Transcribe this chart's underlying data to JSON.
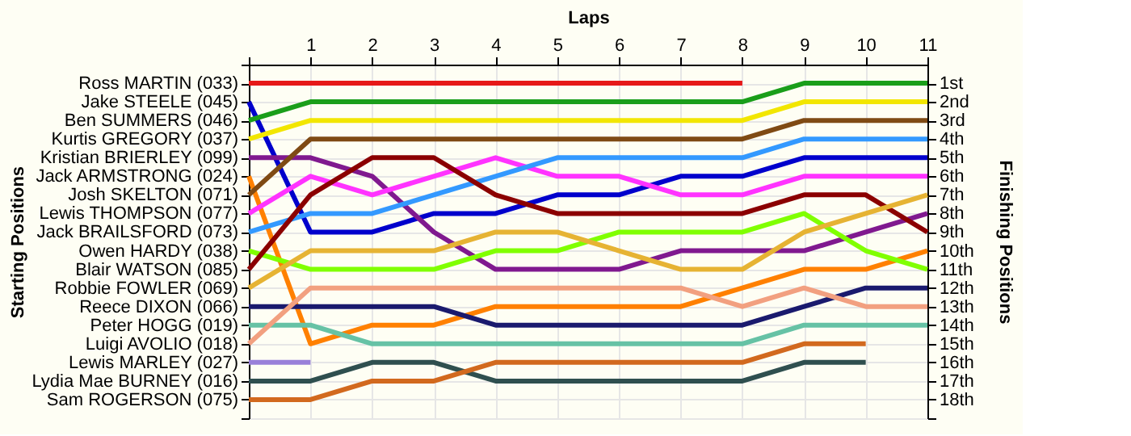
{
  "chart_data": {
    "type": "line",
    "xlabel": "Laps",
    "ylabel": "Finishing Positions",
    "annotations": [
      "Starting Positions"
    ],
    "x": [
      0,
      1,
      2,
      3,
      4,
      5,
      6,
      7,
      8,
      9,
      10,
      11
    ],
    "xlim": [
      0,
      11
    ],
    "xticks": [
      {
        "value": 0,
        "label": null
      },
      1,
      2,
      3,
      4,
      5,
      6,
      7,
      8,
      9,
      10,
      11
    ],
    "ylim": [
      19,
      0
    ],
    "yticks": [
      {
        "value": 1,
        "label": "1st"
      },
      {
        "value": 2,
        "label": "2nd"
      },
      {
        "value": 3,
        "label": "3rd"
      },
      {
        "value": 4,
        "label": "4th"
      },
      {
        "value": 5,
        "label": "5th"
      },
      {
        "value": 6,
        "label": "6th"
      },
      {
        "value": 7,
        "label": "7th"
      },
      {
        "value": 8,
        "label": "8th"
      },
      {
        "value": 9,
        "label": "9th"
      },
      {
        "value": 10,
        "label": "10th"
      },
      {
        "value": 11,
        "label": "11th"
      },
      {
        "value": 12,
        "label": "12th"
      },
      {
        "value": 13,
        "label": "13th"
      },
      {
        "value": 14,
        "label": "14th"
      },
      {
        "value": 15,
        "label": "15th"
      },
      {
        "value": 16,
        "label": "16th"
      },
      {
        "value": 17,
        "label": "17th"
      },
      {
        "value": 18,
        "label": "18th"
      },
      {
        "value": 19,
        "label": null
      }
    ],
    "grid": true,
    "marker": "none",
    "line_style": "solid",
    "legend": false,
    "series": [
      {
        "name": "Ross MARTIN (033)",
        "color": "#e61919",
        "values": [
          1,
          1,
          1,
          1,
          1,
          1,
          1,
          1,
          1,
          null,
          null,
          null
        ]
      },
      {
        "name": "Jake STEELE (045)",
        "color": "#0000cc",
        "values": [
          2,
          9,
          9,
          8,
          8,
          7,
          7,
          6,
          6,
          5,
          5,
          5
        ]
      },
      {
        "name": "Ben SUMMERS (046)",
        "color": "#1a9e1a",
        "values": [
          3,
          2,
          2,
          2,
          2,
          2,
          2,
          2,
          2,
          1,
          1,
          1
        ]
      },
      {
        "name": "Kurtis GREGORY (037)",
        "color": "#f2e600",
        "values": [
          4,
          3,
          3,
          3,
          3,
          3,
          3,
          3,
          3,
          2,
          2,
          2
        ]
      },
      {
        "name": "Kristian BRIERLEY (099)",
        "color": "#80198f",
        "values": [
          5,
          5,
          6,
          9,
          11,
          11,
          11,
          10,
          10,
          10,
          9,
          8
        ]
      },
      {
        "name": "Jack ARMSTRONG (024)",
        "color": "#ff8000",
        "values": [
          6,
          15,
          14,
          14,
          13,
          13,
          13,
          13,
          12,
          11,
          11,
          10
        ]
      },
      {
        "name": "Josh SKELTON (071)",
        "color": "#7f4a14",
        "values": [
          7,
          4,
          4,
          4,
          4,
          4,
          4,
          4,
          4,
          3,
          3,
          3
        ]
      },
      {
        "name": "Lewis THOMPSON (077)",
        "color": "#ff33ff",
        "values": [
          8,
          6,
          7,
          6,
          5,
          6,
          6,
          7,
          7,
          6,
          6,
          6
        ]
      },
      {
        "name": "Jack BRAILSFORD (073)",
        "color": "#3399ff",
        "values": [
          9,
          8,
          8,
          7,
          6,
          5,
          5,
          5,
          5,
          4,
          4,
          4
        ]
      },
      {
        "name": "Owen HARDY (038)",
        "color": "#80ff00",
        "values": [
          10,
          11,
          11,
          11,
          10,
          10,
          9,
          9,
          9,
          8,
          10,
          11
        ]
      },
      {
        "name": "Blair WATSON (085)",
        "color": "#8b0000",
        "values": [
          11,
          7,
          5,
          5,
          7,
          8,
          8,
          8,
          8,
          7,
          7,
          9
        ]
      },
      {
        "name": "Robbie FOWLER (069)",
        "color": "#e6b333",
        "values": [
          12,
          10,
          10,
          10,
          9,
          9,
          10,
          11,
          11,
          9,
          8,
          7
        ]
      },
      {
        "name": "Reece DIXON (066)",
        "color": "#1a1a6e",
        "values": [
          13,
          13,
          13,
          13,
          14,
          14,
          14,
          14,
          14,
          13,
          12,
          12
        ]
      },
      {
        "name": "Peter HOGG (019)",
        "color": "#66c2a5",
        "values": [
          14,
          14,
          15,
          15,
          15,
          15,
          15,
          15,
          15,
          14,
          14,
          14
        ]
      },
      {
        "name": "Luigi AVOLIO (018)",
        "color": "#f2a080",
        "values": [
          15,
          12,
          12,
          12,
          12,
          12,
          12,
          12,
          13,
          12,
          13,
          13
        ]
      },
      {
        "name": "Lewis MARLEY (027)",
        "color": "#9980d9",
        "values": [
          16,
          16,
          null,
          null,
          null,
          null,
          null,
          null,
          null,
          null,
          null,
          null
        ]
      },
      {
        "name": "Lydia Mae BURNEY (016)",
        "color": "#2f4f4f",
        "values": [
          17,
          17,
          16,
          16,
          17,
          17,
          17,
          17,
          17,
          16,
          16,
          null
        ]
      },
      {
        "name": "Sam ROGERSON (075)",
        "color": "#d2691e",
        "values": [
          18,
          18,
          17,
          17,
          16,
          16,
          16,
          16,
          16,
          15,
          15,
          null
        ]
      }
    ]
  }
}
